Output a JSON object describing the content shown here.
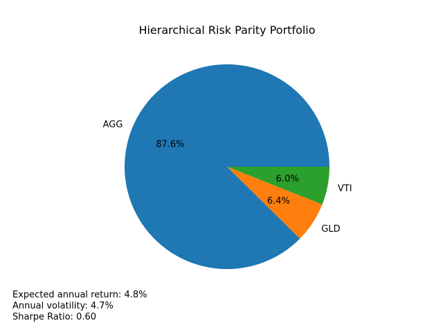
{
  "chart_data": {
    "type": "pie",
    "title": "Hierarchical Risk Parity Portfolio",
    "slices": [
      {
        "label": "AGG",
        "value": 87.6,
        "pct_text": "87.6%",
        "color": "#1f77b4"
      },
      {
        "label": "GLD",
        "value": 6.4,
        "pct_text": "6.4%",
        "color": "#ff7f0e"
      },
      {
        "label": "VTI",
        "value": 6.0,
        "pct_text": "6.0%",
        "color": "#2ca02c"
      }
    ],
    "start_angle_deg": 0,
    "direction": "counterclockwise"
  },
  "stats": {
    "expected_return": "Expected annual return: 4.8%",
    "volatility": "Annual volatility: 4.7%",
    "sharpe": "Sharpe Ratio: 0.60"
  }
}
